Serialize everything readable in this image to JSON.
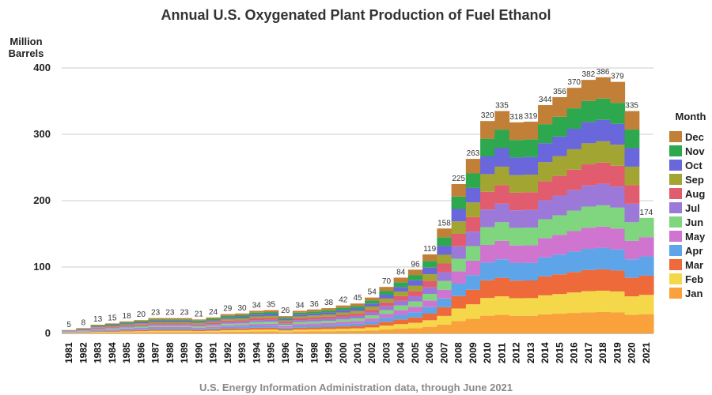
{
  "chart_data": {
    "type": "area",
    "stacked": true,
    "title": "Annual U.S. Oxygenated Plant Production of Fuel Ethanol",
    "ylabel": "Million Barrels",
    "xlabel": "",
    "ylim": [
      0,
      400
    ],
    "yticks": [
      0,
      100,
      200,
      300,
      400
    ],
    "grid": true,
    "legend_title": "Month",
    "legend_position": "right",
    "footer": "U.S. Energy Information Administration data, through June 2021",
    "x": [
      "1981",
      "1982",
      "1983",
      "1984",
      "1985",
      "1986",
      "1987",
      "1988",
      "1989",
      "1990",
      "1991",
      "1992",
      "1993",
      "1994",
      "1995",
      "1996",
      "1997",
      "1998",
      "1999",
      "2000",
      "2001",
      "2002",
      "2003",
      "2004",
      "2005",
      "2006",
      "2007",
      "2008",
      "2009",
      "2010",
      "2011",
      "2012",
      "2013",
      "2014",
      "2015",
      "2016",
      "2017",
      "2018",
      "2019",
      "2020",
      "2021"
    ],
    "totals": [
      5,
      8,
      13,
      15,
      18,
      20,
      23,
      23,
      23,
      21,
      24,
      29,
      30,
      34,
      35,
      26,
      34,
      36,
      38,
      42,
      45,
      54,
      70,
      84,
      96,
      119,
      158,
      225,
      263,
      320,
      335,
      318,
      319,
      344,
      356,
      370,
      382,
      386,
      379,
      335,
      174
    ],
    "total_labels": [
      "5",
      "8",
      "13",
      "15",
      "18",
      "20",
      "23",
      "23",
      "23",
      "21",
      "24",
      "29",
      "30",
      "34",
      "35",
      "26",
      "34",
      "36",
      "38",
      "42",
      "45",
      "54",
      "70",
      "84",
      "96",
      "119",
      "158",
      "225",
      "263",
      "320",
      "335",
      "318",
      "319",
      "344",
      "356",
      "370",
      "382",
      "386",
      "379",
      "335",
      "174"
    ],
    "series": [
      {
        "name": "Jan",
        "color": "#F9A23B",
        "weights": [
          1.0,
          1.0,
          1.0,
          1.0,
          1.0,
          1.0,
          1.0,
          1.0,
          1.0,
          1.0,
          1.0,
          1.0,
          1.0,
          1.0,
          1.0,
          1.0,
          1.0,
          1.0,
          1.0,
          1.0,
          1.0,
          1.0,
          1.0,
          1.0,
          1.0,
          1.0,
          1.0,
          1.0,
          1.0,
          1.0,
          1.0,
          1.0,
          1.0,
          1.0,
          1.0,
          1.0,
          1.0,
          1.0,
          1.0,
          1.0,
          1.0
        ]
      },
      {
        "name": "Feb",
        "color": "#F5D84A",
        "weights": [
          1.0,
          1.0,
          1.0,
          1.0,
          1.0,
          1.0,
          1.0,
          1.0,
          1.0,
          1.0,
          1.0,
          1.0,
          1.0,
          1.0,
          1.0,
          1.0,
          1.0,
          1.0,
          1.0,
          1.0,
          1.0,
          1.0,
          1.0,
          1.0,
          1.0,
          1.0,
          1.0,
          1.0,
          1.0,
          1.0,
          1.0,
          1.0,
          1.0,
          1.0,
          1.0,
          1.0,
          1.0,
          1.0,
          1.0,
          1.0,
          1.0
        ]
      },
      {
        "name": "Mar",
        "color": "#EE6A3A",
        "weights": [
          1.0,
          1.0,
          1.0,
          1.0,
          1.0,
          1.0,
          1.0,
          1.0,
          1.0,
          1.0,
          1.0,
          1.0,
          1.0,
          1.0,
          1.0,
          1.0,
          1.0,
          1.0,
          1.0,
          1.0,
          1.0,
          1.0,
          1.0,
          1.0,
          1.0,
          1.0,
          1.0,
          1.0,
          1.0,
          1.0,
          1.0,
          1.0,
          1.0,
          1.0,
          1.0,
          1.0,
          1.0,
          1.0,
          1.0,
          1.0,
          1.0
        ]
      },
      {
        "name": "Apr",
        "color": "#5DA5E8",
        "weights": [
          1.0,
          1.0,
          1.0,
          1.0,
          1.0,
          1.0,
          1.0,
          1.0,
          1.0,
          1.0,
          1.0,
          1.0,
          1.0,
          1.0,
          1.0,
          1.0,
          1.0,
          1.0,
          1.0,
          1.0,
          1.0,
          1.0,
          1.0,
          1.0,
          1.0,
          1.0,
          1.0,
          1.0,
          1.0,
          1.0,
          1.0,
          1.0,
          1.0,
          1.0,
          1.0,
          1.0,
          1.0,
          1.0,
          1.0,
          1.0,
          1.0
        ]
      },
      {
        "name": "May",
        "color": "#CF75CF",
        "weights": [
          1.0,
          1.0,
          1.0,
          1.0,
          1.0,
          1.0,
          1.0,
          1.0,
          1.0,
          1.0,
          1.0,
          1.0,
          1.0,
          1.0,
          1.0,
          1.0,
          1.0,
          1.0,
          1.0,
          1.0,
          1.0,
          1.0,
          1.0,
          1.0,
          1.0,
          1.0,
          1.0,
          1.0,
          1.0,
          1.0,
          1.0,
          1.0,
          1.0,
          1.0,
          1.0,
          1.0,
          1.0,
          1.0,
          1.0,
          1.0,
          1.0
        ]
      },
      {
        "name": "Jun",
        "color": "#7FD67F",
        "weights": [
          1.0,
          1.0,
          1.0,
          1.0,
          1.0,
          1.0,
          1.0,
          1.0,
          1.0,
          1.0,
          1.0,
          1.0,
          1.0,
          1.0,
          1.0,
          1.0,
          1.0,
          1.0,
          1.0,
          1.0,
          1.0,
          1.0,
          1.0,
          1.0,
          1.0,
          1.0,
          1.0,
          1.0,
          1.0,
          1.0,
          1.0,
          1.0,
          1.0,
          1.0,
          1.0,
          1.0,
          1.0,
          1.0,
          1.0,
          1.0,
          1.0
        ]
      },
      {
        "name": "Jul",
        "color": "#9C79D9",
        "weights": [
          1.0,
          1.0,
          1.0,
          1.0,
          1.0,
          1.0,
          1.0,
          1.0,
          1.0,
          1.0,
          1.0,
          1.0,
          1.0,
          1.0,
          1.0,
          1.0,
          1.0,
          1.0,
          1.0,
          1.0,
          1.0,
          1.0,
          1.0,
          1.0,
          1.0,
          1.0,
          1.0,
          1.0,
          1.0,
          1.0,
          1.0,
          1.0,
          1.0,
          1.0,
          1.0,
          1.0,
          1.0,
          1.0,
          1.0,
          1.0,
          0.0
        ]
      },
      {
        "name": "Aug",
        "color": "#E05C6E",
        "weights": [
          1.0,
          1.0,
          1.0,
          1.0,
          1.0,
          1.0,
          1.0,
          1.0,
          1.0,
          1.0,
          1.0,
          1.0,
          1.0,
          1.0,
          1.0,
          1.0,
          1.0,
          1.0,
          1.0,
          1.0,
          1.0,
          1.0,
          1.0,
          1.0,
          1.0,
          1.0,
          1.0,
          1.0,
          1.0,
          1.0,
          1.0,
          1.0,
          1.0,
          1.0,
          1.0,
          1.0,
          1.0,
          1.0,
          1.0,
          1.0,
          0.0
        ]
      },
      {
        "name": "Sep",
        "color": "#A3A533",
        "weights": [
          1.0,
          1.0,
          1.0,
          1.0,
          1.0,
          1.0,
          1.0,
          1.0,
          1.0,
          1.0,
          1.0,
          1.0,
          1.0,
          1.0,
          1.0,
          1.0,
          1.0,
          1.0,
          1.0,
          1.0,
          1.0,
          1.0,
          1.0,
          1.0,
          1.0,
          1.0,
          1.0,
          1.0,
          1.0,
          1.0,
          1.0,
          1.0,
          1.0,
          1.0,
          1.0,
          1.0,
          1.0,
          1.0,
          1.0,
          1.0,
          0.0
        ]
      },
      {
        "name": "Oct",
        "color": "#6A66DB",
        "weights": [
          1.0,
          1.0,
          1.0,
          1.0,
          1.0,
          1.0,
          1.0,
          1.0,
          1.0,
          1.0,
          1.0,
          1.0,
          1.0,
          1.0,
          1.0,
          1.0,
          1.0,
          1.0,
          1.0,
          1.0,
          1.0,
          1.0,
          1.0,
          1.0,
          1.0,
          1.0,
          1.0,
          1.0,
          1.0,
          1.0,
          1.0,
          1.0,
          1.0,
          1.0,
          1.0,
          1.0,
          1.0,
          1.0,
          1.0,
          1.0,
          0.0
        ]
      },
      {
        "name": "Nov",
        "color": "#2EA84E",
        "weights": [
          1.0,
          1.0,
          1.0,
          1.0,
          1.0,
          1.0,
          1.0,
          1.0,
          1.0,
          1.0,
          1.0,
          1.0,
          1.0,
          1.0,
          1.0,
          1.0,
          1.0,
          1.0,
          1.0,
          1.0,
          1.0,
          1.0,
          1.0,
          1.0,
          1.0,
          1.0,
          1.0,
          1.0,
          1.0,
          1.0,
          1.0,
          1.0,
          1.0,
          1.0,
          1.0,
          1.0,
          1.0,
          1.0,
          1.0,
          1.0,
          0.0
        ]
      },
      {
        "name": "Dec",
        "color": "#C27F37",
        "weights": [
          1.0,
          1.0,
          1.0,
          1.0,
          1.0,
          1.0,
          1.0,
          1.0,
          1.0,
          1.0,
          1.0,
          1.0,
          1.0,
          1.0,
          1.0,
          1.0,
          1.0,
          1.0,
          1.0,
          1.0,
          1.0,
          1.0,
          1.0,
          1.0,
          1.0,
          1.0,
          1.0,
          1.0,
          1.0,
          1.0,
          1.0,
          1.0,
          1.0,
          1.0,
          1.0,
          1.0,
          1.0,
          1.0,
          1.0,
          1.0,
          0.0
        ]
      }
    ]
  },
  "colors": {
    "grid": "#cccccc",
    "axis": "#888888",
    "text": "#222222",
    "footer": "#8a8a8a"
  }
}
